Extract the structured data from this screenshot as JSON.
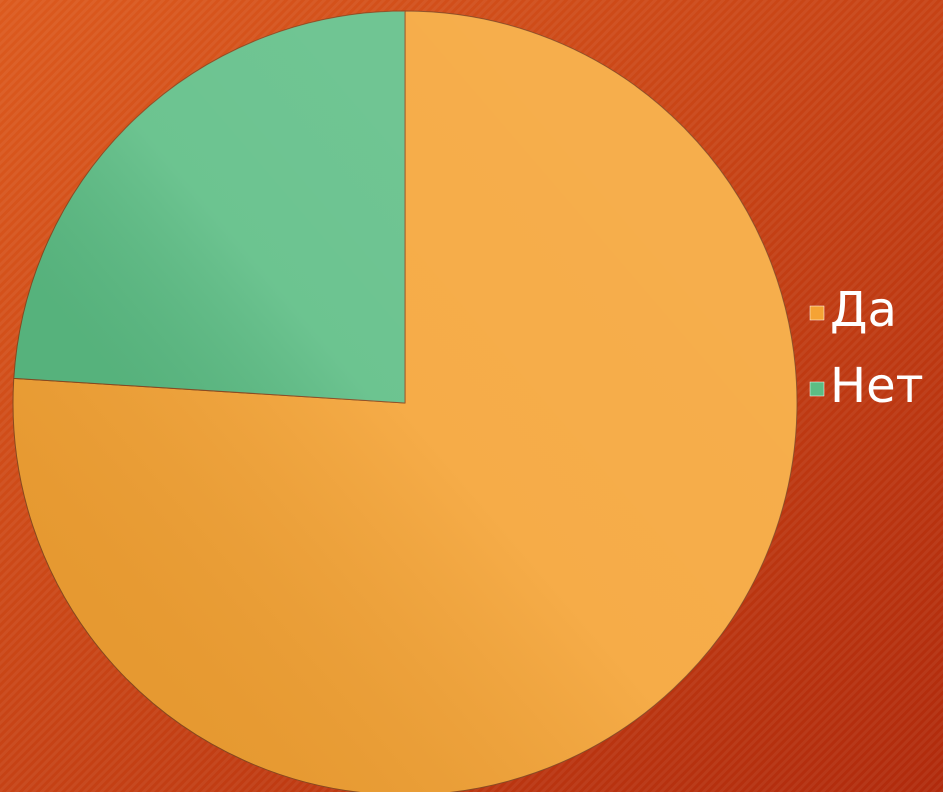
{
  "chart_data": {
    "type": "pie",
    "categories": [
      "Да",
      "Нет"
    ],
    "values": [
      76,
      24
    ],
    "colors": [
      "#f5a334",
      "#5cbd84"
    ],
    "start_angle": 0,
    "direction": "clockwise",
    "legend": "right"
  }
}
